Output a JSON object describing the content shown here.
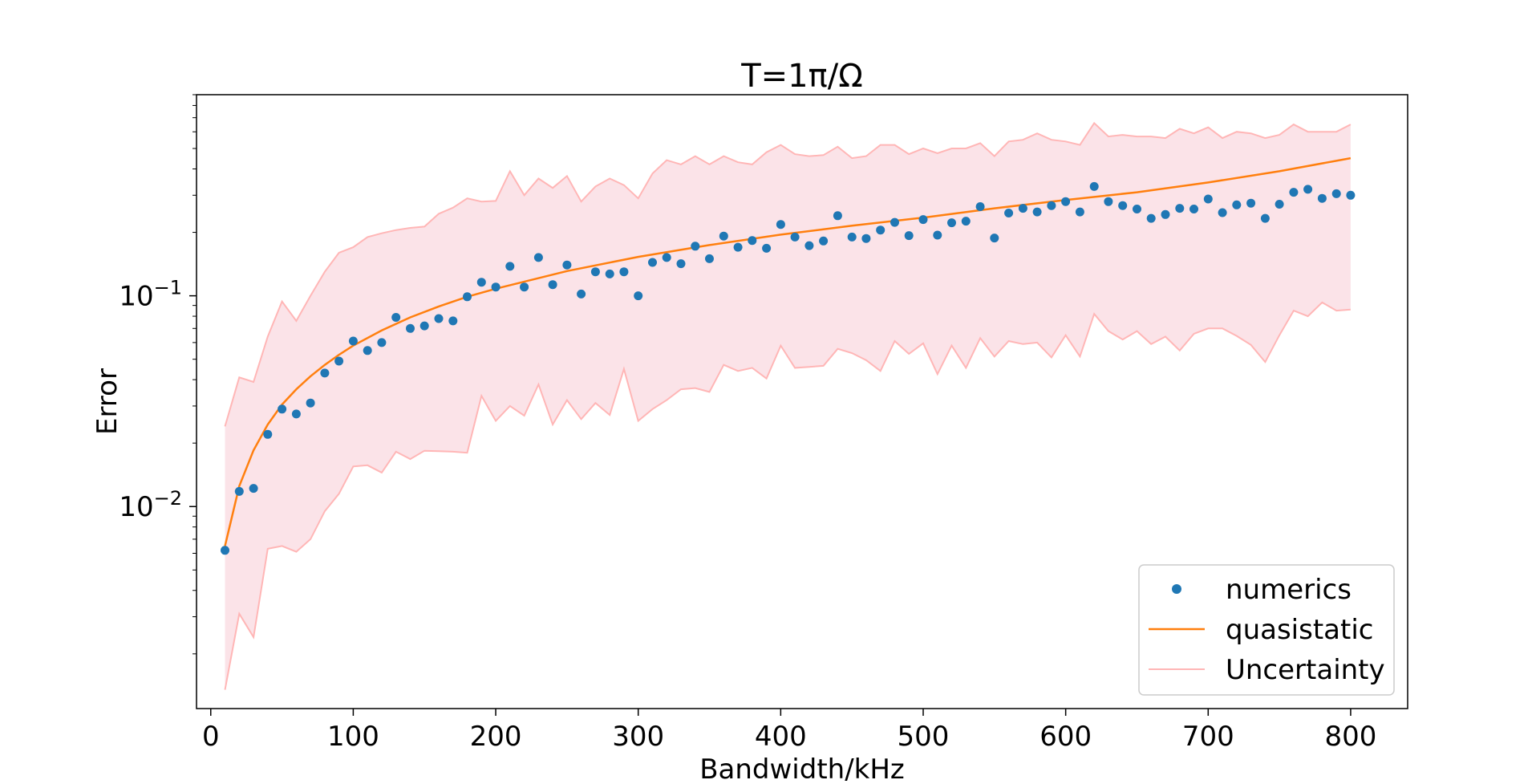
{
  "chart_data": {
    "type": "scatter",
    "title": "T=1π/Ω",
    "xlabel": "Bandwidth/kHz",
    "ylabel": "Error",
    "xlim": [
      -10,
      840
    ],
    "ylim": [
      0.0011,
      0.9
    ],
    "yscale": "log",
    "xticks": [
      0,
      100,
      200,
      300,
      400,
      500,
      600,
      700,
      800
    ],
    "xtick_labels": [
      "0",
      "100",
      "200",
      "300",
      "400",
      "500",
      "600",
      "700",
      "800"
    ],
    "yticks": [
      0.01,
      0.1
    ],
    "ytick_labels": [
      {
        "base": "10",
        "exp": "−2"
      },
      {
        "base": "10",
        "exp": "−1"
      }
    ],
    "grid": false,
    "legend_position": "lower-right",
    "colors": {
      "numerics": "#1f77b4",
      "quasistatic": "#ff7f0e",
      "uncertainty_line": "#ffb6b6",
      "uncertainty_fill": "#fbe3e8"
    },
    "series": [
      {
        "name": "numerics",
        "kind": "points",
        "x": [
          10,
          20,
          30,
          40,
          50,
          60,
          70,
          80,
          90,
          100,
          110,
          120,
          130,
          140,
          150,
          160,
          170,
          180,
          190,
          200,
          210,
          220,
          230,
          240,
          250,
          260,
          270,
          280,
          290,
          300,
          310,
          320,
          330,
          340,
          350,
          360,
          370,
          380,
          390,
          400,
          410,
          420,
          430,
          440,
          450,
          460,
          470,
          480,
          490,
          500,
          510,
          520,
          530,
          540,
          550,
          560,
          570,
          580,
          590,
          600,
          610,
          620,
          630,
          640,
          650,
          660,
          670,
          680,
          690,
          700,
          710,
          720,
          730,
          740,
          750,
          760,
          770,
          780,
          790,
          800
        ],
        "y": [
          0.0062,
          0.0118,
          0.0122,
          0.022,
          0.029,
          0.0275,
          0.031,
          0.043,
          0.049,
          0.061,
          0.055,
          0.06,
          0.079,
          0.07,
          0.072,
          0.078,
          0.076,
          0.099,
          0.116,
          0.11,
          0.138,
          0.11,
          0.152,
          0.113,
          0.14,
          0.102,
          0.13,
          0.127,
          0.13,
          0.1,
          0.144,
          0.152,
          0.142,
          0.172,
          0.15,
          0.192,
          0.17,
          0.183,
          0.168,
          0.218,
          0.19,
          0.173,
          0.182,
          0.24,
          0.19,
          0.187,
          0.205,
          0.223,
          0.193,
          0.23,
          0.194,
          0.222,
          0.226,
          0.265,
          0.188,
          0.247,
          0.26,
          0.25,
          0.268,
          0.28,
          0.25,
          0.33,
          0.28,
          0.268,
          0.258,
          0.233,
          0.243,
          0.26,
          0.258,
          0.288,
          0.248,
          0.27,
          0.275,
          0.233,
          0.272,
          0.31,
          0.32,
          0.29,
          0.305,
          0.3
        ]
      },
      {
        "name": "quasistatic",
        "kind": "line",
        "x": [
          10,
          20,
          30,
          40,
          50,
          60,
          70,
          80,
          90,
          100,
          120,
          140,
          160,
          180,
          200,
          250,
          300,
          350,
          400,
          450,
          500,
          550,
          600,
          650,
          700,
          750,
          800
        ],
        "y": [
          0.0065,
          0.0125,
          0.0185,
          0.0245,
          0.0305,
          0.036,
          0.0415,
          0.047,
          0.0525,
          0.058,
          0.0685,
          0.079,
          0.089,
          0.099,
          0.108,
          0.131,
          0.153,
          0.174,
          0.195,
          0.215,
          0.235,
          0.26,
          0.285,
          0.31,
          0.345,
          0.39,
          0.45
        ]
      },
      {
        "name": "Uncertainty",
        "kind": "band",
        "x": [
          10,
          20,
          30,
          40,
          50,
          60,
          70,
          80,
          90,
          100,
          110,
          120,
          130,
          140,
          150,
          160,
          170,
          180,
          190,
          200,
          210,
          220,
          230,
          240,
          250,
          260,
          270,
          280,
          290,
          300,
          310,
          320,
          330,
          340,
          350,
          360,
          370,
          380,
          390,
          400,
          410,
          420,
          430,
          440,
          450,
          460,
          470,
          480,
          490,
          500,
          510,
          520,
          530,
          540,
          550,
          560,
          570,
          580,
          590,
          600,
          610,
          620,
          630,
          640,
          650,
          660,
          670,
          680,
          690,
          700,
          710,
          720,
          730,
          740,
          750,
          760,
          770,
          780,
          790,
          800
        ],
        "upper": [
          0.024,
          0.041,
          0.039,
          0.064,
          0.094,
          0.076,
          0.1,
          0.13,
          0.16,
          0.17,
          0.19,
          0.198,
          0.205,
          0.21,
          0.213,
          0.245,
          0.262,
          0.29,
          0.28,
          0.282,
          0.39,
          0.3,
          0.36,
          0.325,
          0.37,
          0.28,
          0.33,
          0.36,
          0.335,
          0.29,
          0.38,
          0.44,
          0.42,
          0.46,
          0.42,
          0.46,
          0.43,
          0.42,
          0.48,
          0.52,
          0.47,
          0.46,
          0.465,
          0.51,
          0.45,
          0.46,
          0.52,
          0.52,
          0.47,
          0.5,
          0.475,
          0.5,
          0.5,
          0.53,
          0.46,
          0.54,
          0.55,
          0.59,
          0.55,
          0.54,
          0.52,
          0.66,
          0.57,
          0.58,
          0.57,
          0.57,
          0.56,
          0.62,
          0.59,
          0.63,
          0.56,
          0.6,
          0.59,
          0.56,
          0.58,
          0.65,
          0.6,
          0.6,
          0.6,
          0.65
        ],
        "lower": [
          0.00135,
          0.0031,
          0.0024,
          0.0063,
          0.0065,
          0.0061,
          0.007,
          0.0095,
          0.0115,
          0.0155,
          0.0157,
          0.0145,
          0.0182,
          0.0168,
          0.0184,
          0.0183,
          0.0182,
          0.018,
          0.0335,
          0.0255,
          0.03,
          0.027,
          0.038,
          0.0245,
          0.032,
          0.026,
          0.031,
          0.0272,
          0.045,
          0.0255,
          0.029,
          0.032,
          0.036,
          0.0365,
          0.035,
          0.047,
          0.044,
          0.0455,
          0.0405,
          0.058,
          0.0455,
          0.046,
          0.0465,
          0.056,
          0.0535,
          0.0495,
          0.044,
          0.061,
          0.053,
          0.0595,
          0.0425,
          0.058,
          0.0455,
          0.063,
          0.0515,
          0.061,
          0.059,
          0.06,
          0.051,
          0.065,
          0.0515,
          0.082,
          0.068,
          0.062,
          0.068,
          0.059,
          0.064,
          0.055,
          0.066,
          0.07,
          0.07,
          0.0645,
          0.0585,
          0.0485,
          0.065,
          0.085,
          0.08,
          0.093,
          0.085,
          0.086
        ]
      }
    ]
  }
}
